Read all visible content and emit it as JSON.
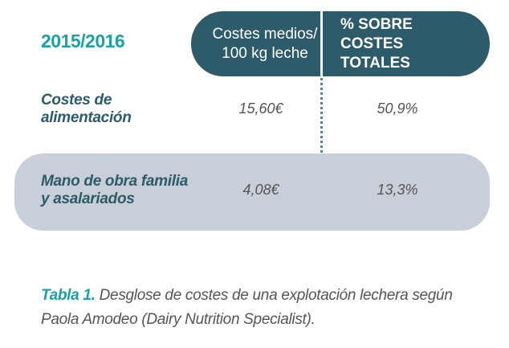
{
  "table": {
    "period": "2015/2016",
    "col1_header_line1": "Costes medios/",
    "col1_header_line2": "100 kg leche",
    "col2_header_line1": "% SOBRE",
    "col2_header_line2": "COSTES TOTALES",
    "rows": [
      {
        "label_line1": "Costes de",
        "label_line2": "alimentación",
        "cost": "15,60€",
        "percent": "50,9%"
      },
      {
        "label_line1": "Mano de obra familia",
        "label_line2": "y asalariados",
        "cost": "4,08€",
        "percent": "13,3%"
      }
    ]
  },
  "caption": {
    "lead": "Tabla 1.",
    "text": " Desglose de costes de una explotación lechera según Paola Amodeo (Dairy Nutrition Specialist)."
  },
  "colors": {
    "header_bg": "#2d5b69",
    "accent_teal": "#1aa3a3",
    "row_highlight": "#c8cfd9"
  }
}
